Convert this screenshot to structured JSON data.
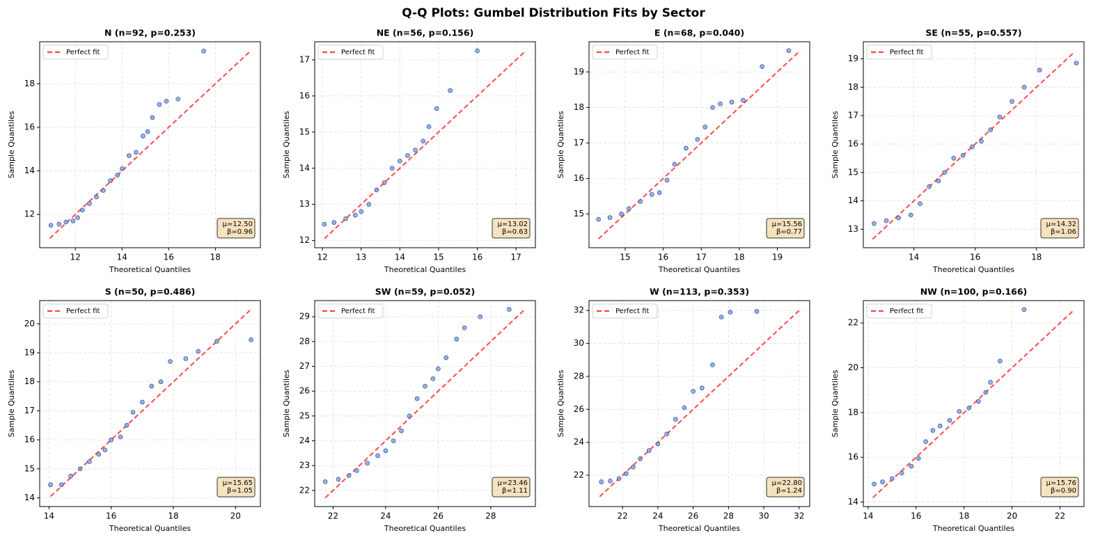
{
  "title": "Q-Q Plots: Gumbel Distribution Fits by Sector",
  "chart_data": [
    {
      "type": "scatter",
      "title": "N (n=92, p=0.253)",
      "x_label": "Theoretical Quantiles",
      "y_label": "Sample Quantiles",
      "xlim": [
        10.47,
        19.93
      ],
      "ylim": [
        10.47,
        19.93
      ],
      "xticks": [
        12,
        14,
        16,
        18
      ],
      "yticks": [
        12,
        14,
        16,
        18
      ],
      "grid": true,
      "color": "#7aa0dc",
      "edge_color": "#1f3a8a",
      "x": [
        10.95,
        11.3,
        11.6,
        11.9,
        12.1,
        12.3,
        12.6,
        12.9,
        13.2,
        13.5,
        13.8,
        14.0,
        14.3,
        14.6,
        14.9,
        15.1,
        15.3,
        15.6,
        15.9,
        16.4,
        17.5
      ],
      "y": [
        11.5,
        11.55,
        11.65,
        11.7,
        11.85,
        12.2,
        12.5,
        12.8,
        13.1,
        13.55,
        13.8,
        14.1,
        14.7,
        14.85,
        15.6,
        15.8,
        16.45,
        17.05,
        17.2,
        17.3,
        19.5
      ],
      "fit_line": {
        "name": "Perfect fit",
        "color": "#ff4444",
        "x": [
          10.9,
          19.5
        ],
        "y": [
          10.9,
          19.5
        ]
      },
      "legend": "upper left",
      "annotation": [
        "μ=12.50",
        "β=0.96"
      ]
    },
    {
      "type": "scatter",
      "title": "NE (n=56, p=0.156)",
      "x_label": "Theoretical Quantiles",
      "y_label": "Sample Quantiles",
      "xlim": [
        11.8,
        17.5
      ],
      "ylim": [
        11.8,
        17.5
      ],
      "xticks": [
        12,
        13,
        14,
        15,
        16,
        17
      ],
      "yticks": [
        12,
        13,
        14,
        15,
        16,
        17
      ],
      "grid": true,
      "color": "#7aa0dc",
      "edge_color": "#1f3a8a",
      "x": [
        12.05,
        12.3,
        12.6,
        12.85,
        13.0,
        13.2,
        13.4,
        13.6,
        13.8,
        14.0,
        14.2,
        14.4,
        14.6,
        14.75,
        14.95,
        15.3,
        16.0
      ],
      "y": [
        12.45,
        12.5,
        12.6,
        12.7,
        12.8,
        13.0,
        13.4,
        13.6,
        14.0,
        14.2,
        14.35,
        14.5,
        14.75,
        15.15,
        15.65,
        16.15,
        17.25
      ],
      "fit_line": {
        "name": "Perfect fit",
        "color": "#ff4444",
        "x": [
          12.05,
          17.2
        ],
        "y": [
          12.05,
          17.2
        ]
      },
      "legend": "upper left",
      "annotation": [
        "μ=13.02",
        "β=0.63"
      ]
    },
    {
      "type": "scatter",
      "title": "E (n=68, p=0.040)",
      "x_label": "Theoretical Quantiles",
      "y_label": "Sample Quantiles",
      "xlim": [
        14.05,
        19.85
      ],
      "ylim": [
        14.05,
        19.85
      ],
      "xticks": [
        15,
        16,
        17,
        18,
        19
      ],
      "yticks": [
        15,
        16,
        17,
        18,
        19
      ],
      "grid": true,
      "color": "#7aa0dc",
      "edge_color": "#1f3a8a",
      "x": [
        14.3,
        14.6,
        14.9,
        15.1,
        15.4,
        15.7,
        15.9,
        16.1,
        16.3,
        16.6,
        16.9,
        17.1,
        17.3,
        17.5,
        17.8,
        18.1,
        18.6,
        19.3
      ],
      "y": [
        14.85,
        14.9,
        15.0,
        15.15,
        15.35,
        15.55,
        15.6,
        15.95,
        16.4,
        16.85,
        17.1,
        17.45,
        18.0,
        18.1,
        18.15,
        18.2,
        19.15,
        19.6
      ],
      "fit_line": {
        "name": "Perfect fit",
        "color": "#ff4444",
        "x": [
          14.3,
          19.6
        ],
        "y": [
          14.3,
          19.6
        ]
      },
      "legend": "upper left",
      "annotation": [
        "μ=15.56",
        "β=0.77"
      ]
    },
    {
      "type": "scatter",
      "title": "SE (n=55, p=0.557)",
      "x_label": "Theoretical Quantiles",
      "y_label": "Sample Quantiles",
      "xlim": [
        12.35,
        19.55
      ],
      "ylim": [
        12.35,
        19.6
      ],
      "xticks": [
        14,
        16,
        18
      ],
      "yticks": [
        13,
        14,
        15,
        16,
        17,
        18,
        19
      ],
      "grid": true,
      "color": "#7aa0dc",
      "edge_color": "#1f3a8a",
      "x": [
        12.7,
        13.1,
        13.5,
        13.9,
        14.2,
        14.5,
        14.8,
        15.0,
        15.3,
        15.6,
        15.9,
        16.2,
        16.5,
        16.8,
        17.2,
        17.6,
        18.1,
        19.3
      ],
      "y": [
        13.2,
        13.3,
        13.4,
        13.5,
        13.9,
        14.5,
        14.7,
        15.0,
        15.5,
        15.6,
        15.9,
        16.1,
        16.5,
        16.95,
        17.5,
        18.0,
        18.6,
        18.85
      ],
      "fit_line": {
        "name": "Perfect fit",
        "color": "#ff4444",
        "x": [
          12.65,
          19.25
        ],
        "y": [
          12.65,
          19.25
        ]
      },
      "legend": "upper left",
      "annotation": [
        "μ=14.32",
        "β=1.06"
      ]
    },
    {
      "type": "scatter",
      "title": "S (n=50, p=0.486)",
      "x_label": "Theoretical Quantiles",
      "y_label": "Sample Quantiles",
      "xlim": [
        13.7,
        20.8
      ],
      "ylim": [
        13.7,
        20.8
      ],
      "xticks": [
        14,
        16,
        18,
        20
      ],
      "yticks": [
        14,
        15,
        16,
        17,
        18,
        19,
        20
      ],
      "grid": true,
      "color": "#7aa0dc",
      "edge_color": "#1f3a8a",
      "x": [
        14.05,
        14.4,
        14.7,
        15.0,
        15.3,
        15.6,
        15.8,
        16.0,
        16.3,
        16.5,
        16.7,
        17.0,
        17.3,
        17.6,
        17.9,
        18.4,
        18.8,
        19.4,
        20.5
      ],
      "y": [
        14.45,
        14.45,
        14.75,
        15.0,
        15.25,
        15.5,
        15.65,
        16.0,
        16.1,
        16.5,
        16.95,
        17.3,
        17.85,
        18.0,
        18.7,
        18.8,
        19.05,
        19.4,
        19.45
      ],
      "fit_line": {
        "name": "Perfect fit",
        "color": "#ff4444",
        "x": [
          14.05,
          20.5
        ],
        "y": [
          14.05,
          20.5
        ]
      },
      "legend": "upper left",
      "annotation": [
        "μ=15.65",
        "β=1.05"
      ]
    },
    {
      "type": "scatter",
      "title": "SW (n=59, p=0.052)",
      "x_label": "Theoretical Quantiles",
      "y_label": "Sample Quantiles",
      "xlim": [
        21.3,
        29.7
      ],
      "ylim": [
        21.35,
        29.65
      ],
      "xticks": [
        22,
        24,
        26,
        28
      ],
      "yticks": [
        22,
        23,
        24,
        25,
        26,
        27,
        28,
        29
      ],
      "grid": true,
      "color": "#7aa0dc",
      "edge_color": "#1f3a8a",
      "x": [
        21.7,
        22.2,
        22.6,
        22.9,
        23.3,
        23.7,
        24.0,
        24.3,
        24.6,
        24.9,
        25.2,
        25.5,
        25.8,
        26.0,
        26.3,
        26.7,
        27.0,
        27.6,
        28.7
      ],
      "y": [
        22.35,
        22.45,
        22.6,
        22.8,
        23.1,
        23.4,
        23.6,
        24.0,
        24.4,
        25.0,
        25.7,
        26.2,
        26.5,
        26.9,
        27.35,
        28.1,
        28.55,
        29.0,
        29.3
      ],
      "fit_line": {
        "name": "Perfect fit",
        "color": "#ff4444",
        "x": [
          21.7,
          29.3
        ],
        "y": [
          21.7,
          29.3
        ]
      },
      "legend": "upper left",
      "annotation": [
        "μ=23.46",
        "β=1.11"
      ]
    },
    {
      "type": "scatter",
      "title": "W (n=113, p=0.353)",
      "x_label": "Theoretical Quantiles",
      "y_label": "Sample Quantiles",
      "xlim": [
        20.1,
        32.6
      ],
      "ylim": [
        20.1,
        32.6
      ],
      "xticks": [
        22,
        24,
        26,
        28,
        30,
        32
      ],
      "yticks": [
        22,
        24,
        26,
        28,
        30,
        32
      ],
      "grid": true,
      "color": "#7aa0dc",
      "edge_color": "#1f3a8a",
      "x": [
        20.8,
        21.3,
        21.8,
        22.2,
        22.6,
        23.0,
        23.5,
        24.0,
        24.5,
        25.0,
        25.5,
        26.0,
        26.5,
        27.1,
        27.6,
        28.1,
        29.6
      ],
      "y": [
        21.6,
        21.65,
        21.8,
        22.1,
        22.5,
        23.0,
        23.5,
        23.9,
        24.5,
        25.4,
        26.1,
        27.1,
        27.3,
        28.7,
        31.6,
        31.9,
        31.95
      ],
      "fit_line": {
        "name": "Perfect fit",
        "color": "#ff4444",
        "x": [
          20.7,
          32.0
        ],
        "y": [
          20.7,
          32.0
        ]
      },
      "legend": "upper left",
      "annotation": [
        "μ=22.80",
        "β=1.24"
      ]
    },
    {
      "type": "scatter",
      "title": "NW (n=100, p=0.166)",
      "x_label": "Theoretical Quantiles",
      "y_label": "Sample Quantiles",
      "xlim": [
        13.8,
        23.0
      ],
      "ylim": [
        13.8,
        23.0
      ],
      "xticks": [
        14,
        16,
        18,
        20,
        22
      ],
      "yticks": [
        14,
        16,
        18,
        20,
        22
      ],
      "grid": true,
      "color": "#7aa0dc",
      "edge_color": "#1f3a8a",
      "x": [
        14.25,
        14.6,
        15.0,
        15.4,
        15.8,
        16.1,
        16.4,
        16.7,
        17.0,
        17.4,
        17.8,
        18.2,
        18.6,
        18.9,
        19.1,
        19.5,
        20.5
      ],
      "y": [
        14.8,
        14.9,
        15.05,
        15.3,
        15.6,
        15.95,
        16.7,
        17.2,
        17.4,
        17.65,
        18.05,
        18.2,
        18.5,
        18.9,
        19.35,
        20.3,
        22.6
      ],
      "fit_line": {
        "name": "Perfect fit",
        "color": "#ff4444",
        "x": [
          14.2,
          22.6
        ],
        "y": [
          14.2,
          22.6
        ]
      },
      "legend": "upper left",
      "annotation": [
        "μ=15.76",
        "β=0.90"
      ]
    }
  ]
}
